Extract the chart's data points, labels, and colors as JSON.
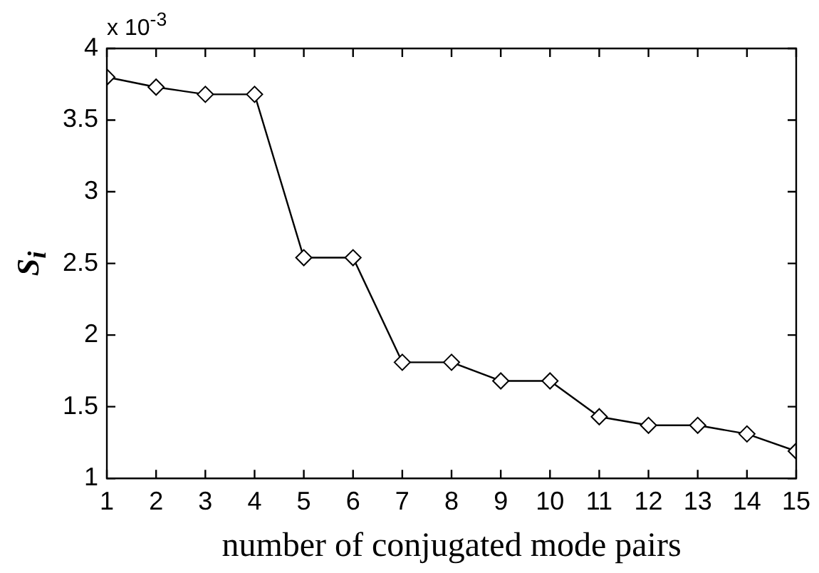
{
  "chart_data": {
    "type": "line",
    "xlabel": "number of conjugated mode pairs",
    "ylabel": "S$_{i}$",
    "annotations": [
      "x 10$^{-3}$"
    ],
    "x": [
      1,
      2,
      3,
      4,
      5,
      6,
      7,
      8,
      9,
      10,
      11,
      12,
      13,
      14,
      15
    ],
    "series": [
      {
        "color": "#000000",
        "values": [
          3.8,
          3.73,
          3.68,
          3.68,
          2.54,
          2.54,
          1.81,
          1.81,
          1.68,
          1.68,
          1.43,
          1.37,
          1.37,
          1.31,
          1.19
        ]
      }
    ],
    "xlim": [
      1,
      15
    ],
    "xticks": [
      1,
      2,
      3,
      4,
      5,
      6,
      7,
      8,
      9,
      10,
      11,
      12,
      13,
      14,
      15
    ],
    "ylim": [
      1,
      4
    ],
    "yticks": [
      1,
      1.5,
      2,
      2.5,
      3,
      3.5,
      4
    ],
    "marker": "diamond",
    "line_style": "solid",
    "grid": false,
    "legend": false
  }
}
